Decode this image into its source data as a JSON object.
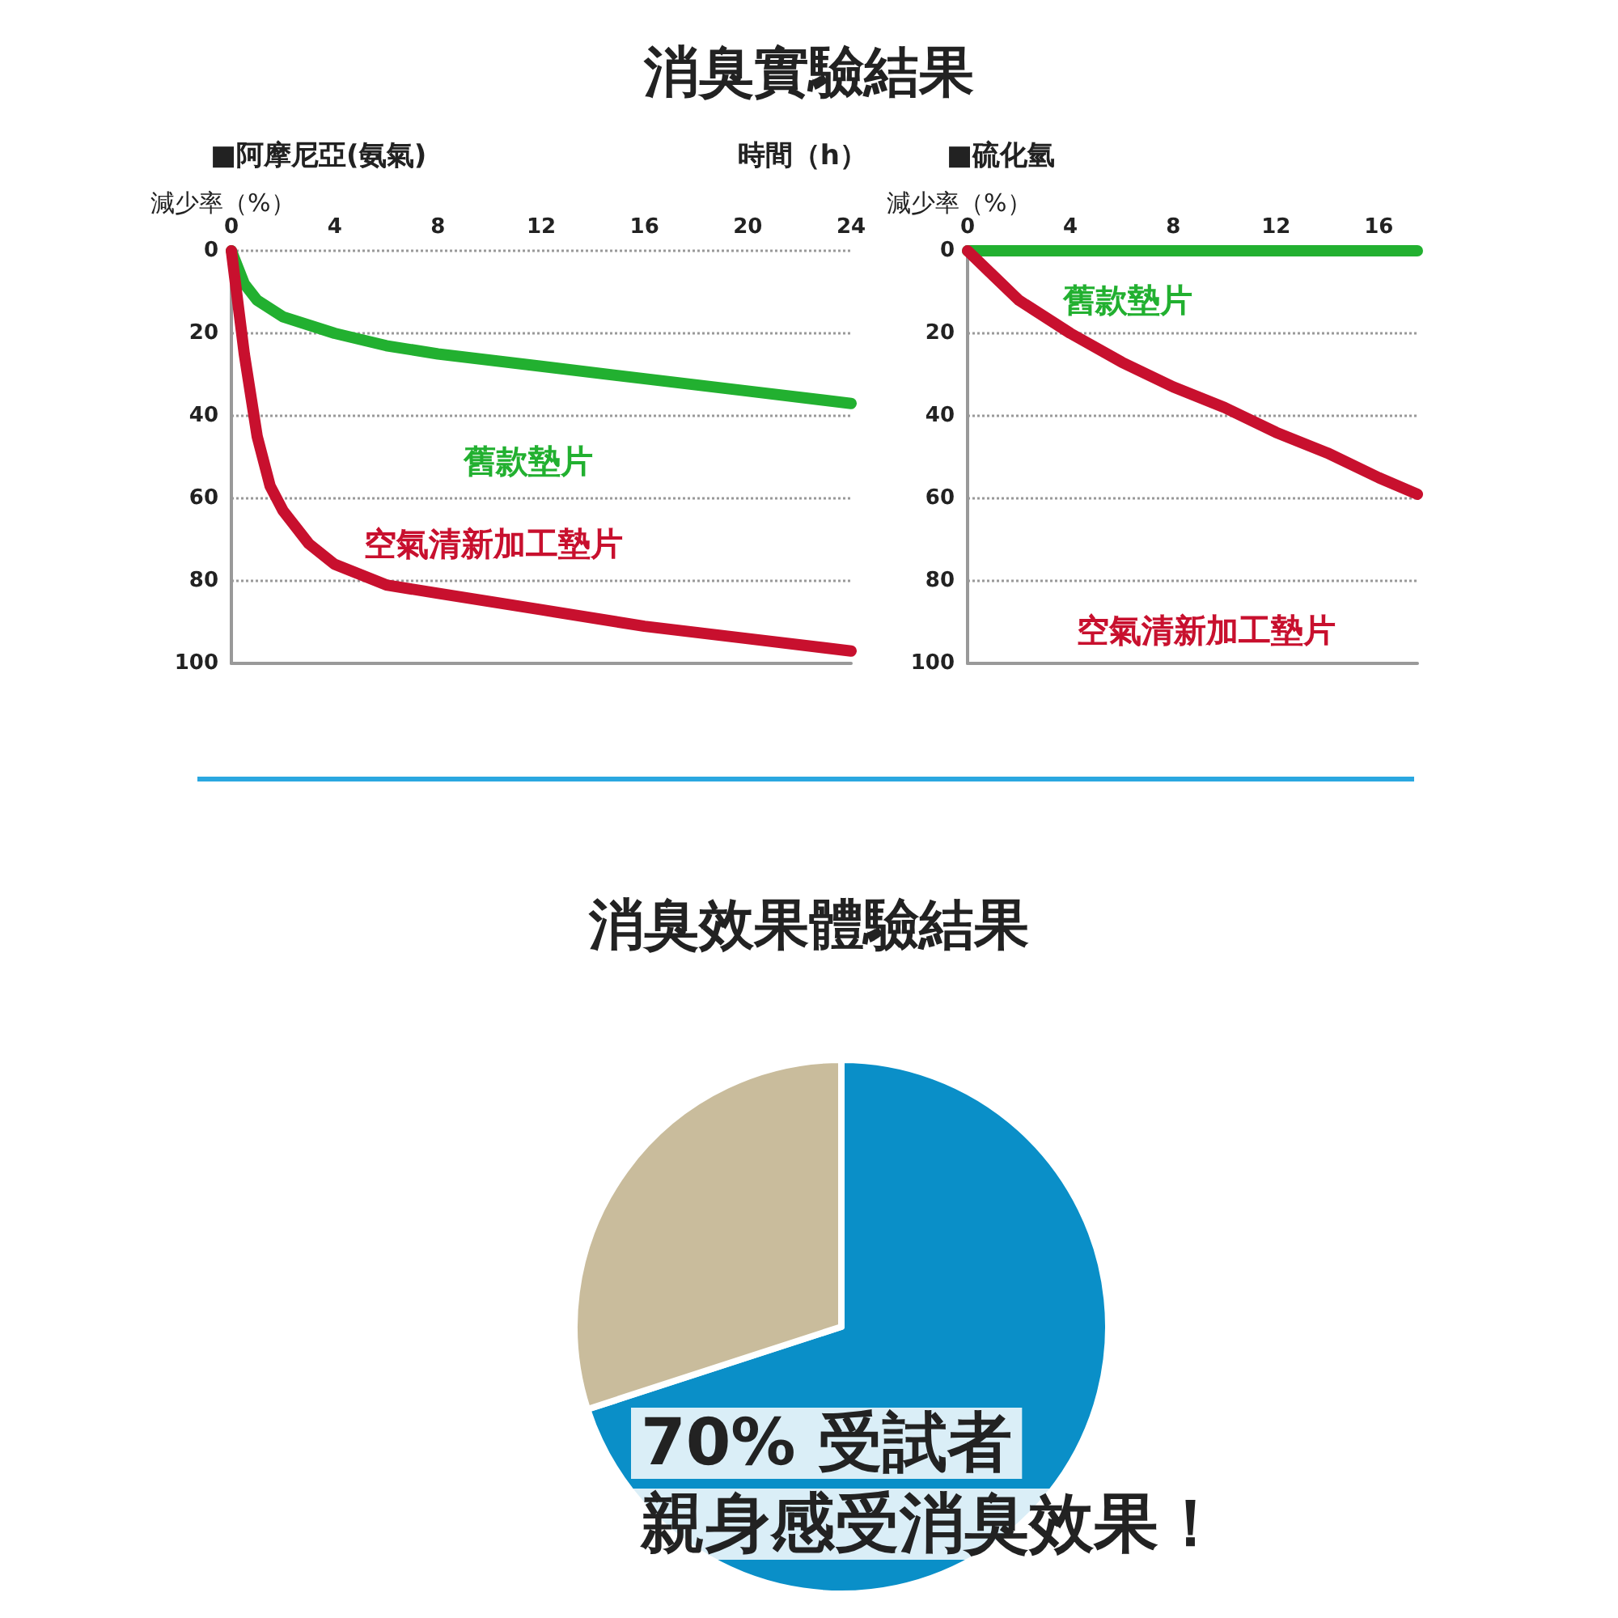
{
  "chart_data": [
    {
      "type": "line",
      "title": "消臭實驗結果",
      "subtitle": "■阿摩尼亞(氨氣)",
      "xlabel": "時間（h）",
      "ylabel": "減少率（%）",
      "xlim": [
        0,
        24
      ],
      "xticks": [
        0,
        4,
        8,
        12,
        16,
        20,
        24
      ],
      "ylim": [
        100,
        0
      ],
      "yticks": [
        0,
        20,
        40,
        60,
        80,
        100
      ],
      "grid": "y",
      "legend": false,
      "marker": "none",
      "series": [
        {
          "name": "舊款墊片",
          "color": "#22b030",
          "x": [
            0,
            0.5,
            1,
            2,
            4,
            6,
            8,
            12,
            16,
            20,
            24
          ],
          "values": [
            0,
            8,
            12,
            16,
            20,
            23,
            25,
            28,
            31,
            34,
            37
          ]
        },
        {
          "name": "空氣清新加工墊片",
          "color": "#c8102e",
          "x": [
            0,
            0.5,
            1,
            1.5,
            2,
            3,
            4,
            6,
            8,
            12,
            16,
            20,
            24
          ],
          "values": [
            0,
            25,
            45,
            57,
            63,
            71,
            76,
            81,
            83,
            87,
            91,
            94,
            97
          ]
        }
      ]
    },
    {
      "type": "line",
      "title": "■硫化氫",
      "ylabel": "減少率（%）",
      "xlim": [
        0,
        17.5
      ],
      "xticks": [
        0,
        4,
        8,
        12,
        16
      ],
      "ylim": [
        100,
        0
      ],
      "yticks": [
        0,
        20,
        40,
        60,
        80,
        100
      ],
      "grid": "y",
      "legend": false,
      "marker": "none",
      "series": [
        {
          "name": "舊款墊片",
          "color": "#22b030",
          "x": [
            0,
            17.5
          ],
          "values": [
            0,
            0
          ]
        },
        {
          "name": "空氣清新加工墊片",
          "color": "#c8102e",
          "x": [
            0,
            1,
            2,
            4,
            6,
            8,
            10,
            12,
            14,
            16,
            17.5
          ],
          "values": [
            0,
            6,
            12,
            20,
            27,
            33,
            38,
            44,
            49,
            55,
            59
          ]
        }
      ]
    },
    {
      "type": "pie",
      "title": "消臭效果體驗結果",
      "categories": [
        null,
        null
      ],
      "values": [
        70,
        30
      ],
      "colors": [
        "#0a8fc8",
        "#c9bc9c"
      ],
      "legend": false,
      "annotations": [
        "70% 受試者",
        "親身感受消臭效果！"
      ]
    }
  ]
}
